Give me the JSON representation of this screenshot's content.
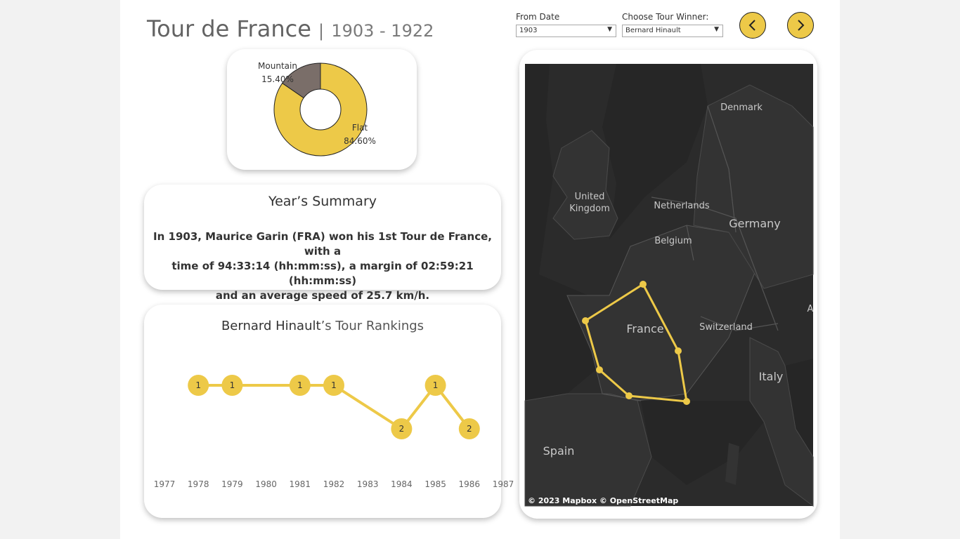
{
  "header": {
    "title": "Tour de France",
    "separator": "|",
    "year_range": "1903 - 1922"
  },
  "filters": {
    "from_date": {
      "label": "From Date",
      "value": "1903"
    },
    "tour_winner": {
      "label": "Choose Tour Winner:",
      "value": "Bernard Hinault"
    }
  },
  "nav": {
    "prev_icon": "chevron-left-icon",
    "next_icon": "chevron-right-icon"
  },
  "colors": {
    "accent": "#edc948",
    "mountain": "#7a6e69",
    "map_bg": "#2b2b2b"
  },
  "terrain_chart": {
    "slices": [
      {
        "label": "Mountain",
        "value_label": "15.40%",
        "value": 15.4,
        "color": "#7a6e69"
      },
      {
        "label": "Flat",
        "value_label": "84.60%",
        "value": 84.6,
        "color": "#edc948"
      }
    ]
  },
  "summary": {
    "heading": "Year’s Summary",
    "line1": "In 1903, Maurice Garin (FRA) won his 1st Tour de France, with a",
    "line2": "time of 94:33:14 (hh:mm:ss), a margin of 02:59:21 (hh:mm:ss)",
    "line3": "and an average speed of 25.7 km/h."
  },
  "rankings": {
    "name": "Bernard Hinault",
    "suffix": "’s Tour Rankings"
  },
  "chart_data": {
    "type": "line",
    "title": "Bernard Hinault’s Tour Rankings",
    "x": [
      1978,
      1979,
      1981,
      1982,
      1984,
      1985,
      1986
    ],
    "series": [
      {
        "values": [
          1,
          1,
          1,
          1,
          2,
          1,
          2
        ]
      }
    ],
    "x_ticks": [
      "1977",
      "1978",
      "1979",
      "1980",
      "1981",
      "1982",
      "1983",
      "1984",
      "1985",
      "1986",
      "1987"
    ],
    "xlim": [
      1977,
      1987
    ],
    "ylim": [
      0.5,
      2.5
    ],
    "y_reversed": true,
    "grid": false
  },
  "map": {
    "labels": {
      "denmark": "Denmark",
      "uk1": "United",
      "uk2": "Kingdom",
      "netherlands": "Netherlands",
      "germany": "Germany",
      "belgium": "Belgium",
      "france": "France",
      "switzerland": "Switzerland",
      "italy": "Italy",
      "spain": "Spain",
      "edge": "A"
    },
    "attribution": "© 2023 Mapbox  © OpenStreetMap",
    "route_stops": 6
  }
}
